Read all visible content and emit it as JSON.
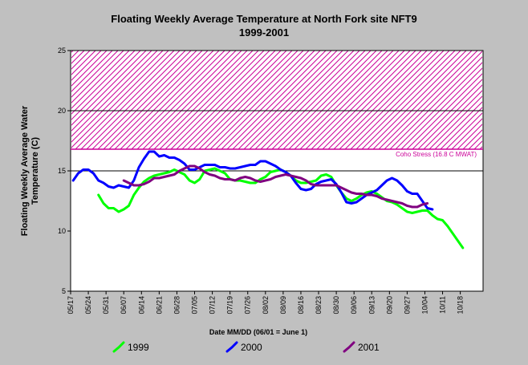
{
  "chart_data": {
    "type": "line",
    "title": "Floating Weekly Average Temperature at North Fork site NFT9",
    "subtitle": "1999-2001",
    "ylabel_line1": "Floating Weekly Average Water",
    "ylabel_line2": "Temperature (C)",
    "xlabel": "Date MM/DD (06/01 = June 1)",
    "ylim": [
      5,
      25
    ],
    "yticks": [
      5,
      10,
      15,
      20,
      25
    ],
    "xlim": [
      137,
      300
    ],
    "xticks": [
      {
        "label": "05/17",
        "day": 137
      },
      {
        "label": "05/24",
        "day": 144
      },
      {
        "label": "05/31",
        "day": 151
      },
      {
        "label": "06/07",
        "day": 158
      },
      {
        "label": "06/14",
        "day": 165
      },
      {
        "label": "06/21",
        "day": 172
      },
      {
        "label": "06/28",
        "day": 179
      },
      {
        "label": "07/05",
        "day": 186
      },
      {
        "label": "07/12",
        "day": 193
      },
      {
        "label": "07/19",
        "day": 200
      },
      {
        "label": "07/26",
        "day": 207
      },
      {
        "label": "08/02",
        "day": 214
      },
      {
        "label": "08/09",
        "day": 221
      },
      {
        "label": "08/16",
        "day": 228
      },
      {
        "label": "08/23",
        "day": 235
      },
      {
        "label": "08/30",
        "day": 242
      },
      {
        "label": "09/06",
        "day": 249
      },
      {
        "label": "09/13",
        "day": 256
      },
      {
        "label": "09/20",
        "day": 263
      },
      {
        "label": "09/27",
        "day": 270
      },
      {
        "label": "10/04",
        "day": 277
      },
      {
        "label": "10/11",
        "day": 284
      },
      {
        "label": "10/18",
        "day": 291
      }
    ],
    "grid_y": [
      15,
      20
    ],
    "threshold": {
      "label": "Coho Stress (16.8 C MWAT)",
      "from": 16.8,
      "to": 25,
      "color": "#cc0099"
    },
    "series": [
      {
        "name": "1999",
        "color": "#00ff00",
        "points": [
          [
            148,
            13.0
          ],
          [
            150,
            12.3
          ],
          [
            152,
            11.9
          ],
          [
            154,
            11.9
          ],
          [
            156,
            11.6
          ],
          [
            158,
            11.8
          ],
          [
            160,
            12.1
          ],
          [
            162,
            13.0
          ],
          [
            164,
            13.6
          ],
          [
            166,
            14.1
          ],
          [
            168,
            14.4
          ],
          [
            170,
            14.6
          ],
          [
            172,
            14.7
          ],
          [
            174,
            14.8
          ],
          [
            176,
            14.9
          ],
          [
            178,
            15.1
          ],
          [
            180,
            14.9
          ],
          [
            182,
            14.7
          ],
          [
            184,
            14.2
          ],
          [
            186,
            14.0
          ],
          [
            188,
            14.3
          ],
          [
            190,
            15.0
          ],
          [
            192,
            15.1
          ],
          [
            194,
            15.2
          ],
          [
            196,
            15.0
          ],
          [
            198,
            14.8
          ],
          [
            200,
            14.3
          ],
          [
            202,
            14.2
          ],
          [
            204,
            14.2
          ],
          [
            206,
            14.1
          ],
          [
            208,
            14.0
          ],
          [
            210,
            14.0
          ],
          [
            212,
            14.3
          ],
          [
            214,
            14.5
          ],
          [
            216,
            14.9
          ],
          [
            218,
            15.0
          ],
          [
            220,
            15.1
          ],
          [
            222,
            14.9
          ],
          [
            224,
            14.6
          ],
          [
            226,
            14.2
          ],
          [
            228,
            14.0
          ],
          [
            230,
            14.0
          ],
          [
            232,
            14.1
          ],
          [
            234,
            14.2
          ],
          [
            236,
            14.6
          ],
          [
            238,
            14.7
          ],
          [
            240,
            14.5
          ],
          [
            242,
            13.8
          ],
          [
            244,
            13.2
          ],
          [
            246,
            12.7
          ],
          [
            248,
            12.5
          ],
          [
            250,
            12.7
          ],
          [
            252,
            13.0
          ],
          [
            254,
            13.2
          ],
          [
            256,
            13.3
          ],
          [
            258,
            13.1
          ],
          [
            260,
            12.8
          ],
          [
            262,
            12.5
          ],
          [
            264,
            12.4
          ],
          [
            266,
            12.2
          ],
          [
            268,
            11.9
          ],
          [
            270,
            11.6
          ],
          [
            272,
            11.5
          ],
          [
            274,
            11.6
          ],
          [
            276,
            11.7
          ],
          [
            278,
            11.7
          ],
          [
            280,
            11.3
          ],
          [
            282,
            11.0
          ],
          [
            284,
            10.9
          ],
          [
            286,
            10.4
          ],
          [
            288,
            9.8
          ],
          [
            290,
            9.2
          ],
          [
            292,
            8.6
          ]
        ]
      },
      {
        "name": "2000",
        "color": "#0000ff",
        "points": [
          [
            138,
            14.2
          ],
          [
            140,
            14.8
          ],
          [
            142,
            15.1
          ],
          [
            144,
            15.1
          ],
          [
            146,
            14.8
          ],
          [
            148,
            14.2
          ],
          [
            150,
            14.0
          ],
          [
            152,
            13.7
          ],
          [
            154,
            13.6
          ],
          [
            156,
            13.8
          ],
          [
            158,
            13.7
          ],
          [
            160,
            13.6
          ],
          [
            162,
            14.2
          ],
          [
            164,
            15.3
          ],
          [
            166,
            16.0
          ],
          [
            168,
            16.6
          ],
          [
            170,
            16.6
          ],
          [
            172,
            16.2
          ],
          [
            174,
            16.3
          ],
          [
            176,
            16.1
          ],
          [
            178,
            16.1
          ],
          [
            180,
            15.9
          ],
          [
            182,
            15.6
          ],
          [
            184,
            15.1
          ],
          [
            186,
            15.1
          ],
          [
            188,
            15.3
          ],
          [
            190,
            15.5
          ],
          [
            192,
            15.5
          ],
          [
            194,
            15.5
          ],
          [
            196,
            15.3
          ],
          [
            198,
            15.3
          ],
          [
            200,
            15.2
          ],
          [
            202,
            15.2
          ],
          [
            204,
            15.3
          ],
          [
            206,
            15.4
          ],
          [
            208,
            15.5
          ],
          [
            210,
            15.5
          ],
          [
            212,
            15.8
          ],
          [
            214,
            15.8
          ],
          [
            216,
            15.6
          ],
          [
            218,
            15.4
          ],
          [
            220,
            15.1
          ],
          [
            222,
            14.9
          ],
          [
            224,
            14.6
          ],
          [
            226,
            14.0
          ],
          [
            228,
            13.5
          ],
          [
            230,
            13.4
          ],
          [
            232,
            13.5
          ],
          [
            234,
            13.9
          ],
          [
            236,
            14.1
          ],
          [
            238,
            14.2
          ],
          [
            240,
            14.3
          ],
          [
            242,
            13.9
          ],
          [
            244,
            13.2
          ],
          [
            246,
            12.4
          ],
          [
            248,
            12.3
          ],
          [
            250,
            12.4
          ],
          [
            252,
            12.7
          ],
          [
            254,
            13.0
          ],
          [
            256,
            13.2
          ],
          [
            258,
            13.4
          ],
          [
            260,
            13.8
          ],
          [
            262,
            14.2
          ],
          [
            264,
            14.4
          ],
          [
            266,
            14.2
          ],
          [
            268,
            13.8
          ],
          [
            270,
            13.3
          ],
          [
            272,
            13.1
          ],
          [
            274,
            13.1
          ],
          [
            276,
            12.5
          ],
          [
            278,
            11.9
          ],
          [
            280,
            11.8
          ]
        ]
      },
      {
        "name": "2001",
        "color": "#800080",
        "points": [
          [
            158,
            14.2
          ],
          [
            160,
            14.0
          ],
          [
            162,
            13.8
          ],
          [
            164,
            13.8
          ],
          [
            166,
            13.9
          ],
          [
            168,
            14.1
          ],
          [
            170,
            14.4
          ],
          [
            172,
            14.4
          ],
          [
            174,
            14.5
          ],
          [
            176,
            14.6
          ],
          [
            178,
            14.7
          ],
          [
            180,
            15.0
          ],
          [
            182,
            15.2
          ],
          [
            184,
            15.4
          ],
          [
            186,
            15.4
          ],
          [
            188,
            15.2
          ],
          [
            190,
            14.9
          ],
          [
            192,
            14.7
          ],
          [
            194,
            14.6
          ],
          [
            196,
            14.4
          ],
          [
            198,
            14.3
          ],
          [
            200,
            14.3
          ],
          [
            202,
            14.2
          ],
          [
            204,
            14.4
          ],
          [
            206,
            14.5
          ],
          [
            208,
            14.4
          ],
          [
            210,
            14.2
          ],
          [
            212,
            14.1
          ],
          [
            214,
            14.2
          ],
          [
            216,
            14.3
          ],
          [
            218,
            14.5
          ],
          [
            220,
            14.6
          ],
          [
            222,
            14.7
          ],
          [
            224,
            14.6
          ],
          [
            226,
            14.5
          ],
          [
            228,
            14.4
          ],
          [
            230,
            14.2
          ],
          [
            232,
            13.9
          ],
          [
            234,
            13.8
          ],
          [
            236,
            13.8
          ],
          [
            238,
            13.8
          ],
          [
            240,
            13.8
          ],
          [
            242,
            13.8
          ],
          [
            244,
            13.6
          ],
          [
            246,
            13.4
          ],
          [
            248,
            13.2
          ],
          [
            250,
            13.1
          ],
          [
            252,
            13.1
          ],
          [
            254,
            13.0
          ],
          [
            256,
            13.0
          ],
          [
            258,
            12.9
          ],
          [
            260,
            12.7
          ],
          [
            262,
            12.6
          ],
          [
            264,
            12.5
          ],
          [
            266,
            12.4
          ],
          [
            268,
            12.3
          ],
          [
            270,
            12.1
          ],
          [
            272,
            12.0
          ],
          [
            274,
            12.0
          ],
          [
            276,
            12.2
          ],
          [
            278,
            12.3
          ]
        ]
      }
    ],
    "legend": [
      {
        "name": "1999",
        "color": "#00ff00"
      },
      {
        "name": "2000",
        "color": "#0000ff"
      },
      {
        "name": "2001",
        "color": "#800080"
      }
    ]
  }
}
